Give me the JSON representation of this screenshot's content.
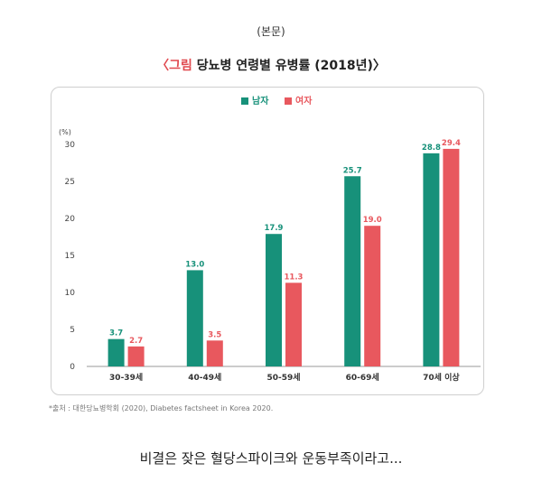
{
  "top_note": "(본문)",
  "figure": {
    "bracket_open": "〈그림",
    "title_text": "당뇨병 연령별 유병률 (2018년)〉"
  },
  "source_note": "*출처 : 대한당뇨병학회 (2020), Diabetes factsheet in Korea 2020.",
  "caption": "비결은 잦은 혈당스파이크와 운동부족이라고...",
  "colors": {
    "male": "#17917a",
    "female": "#e8585e",
    "accent": "#e0494f"
  },
  "chart_data": {
    "type": "bar",
    "title": "당뇨병 연령별 유병률 (2018년)",
    "ylabel": "(%)",
    "xlabel": "",
    "ylim": [
      0,
      30
    ],
    "yticks": [
      0,
      5,
      10,
      15,
      20,
      25,
      30
    ],
    "grid": false,
    "legend_position": "top-center",
    "categories": [
      "30-39세",
      "40-49세",
      "50-59세",
      "60-69세",
      "70세 이상"
    ],
    "series": [
      {
        "name": "남자",
        "color": "#17917a",
        "values": [
          3.7,
          13.0,
          17.9,
          25.7,
          28.8
        ],
        "labels": [
          "3.7",
          "13.0",
          "17.9",
          "25.7",
          "28.8"
        ]
      },
      {
        "name": "여자",
        "color": "#e8585e",
        "values": [
          2.7,
          3.5,
          11.3,
          19.0,
          29.4
        ],
        "labels": [
          "2.7",
          "3.5",
          "11.3",
          "19.0",
          "29.4"
        ]
      }
    ]
  }
}
